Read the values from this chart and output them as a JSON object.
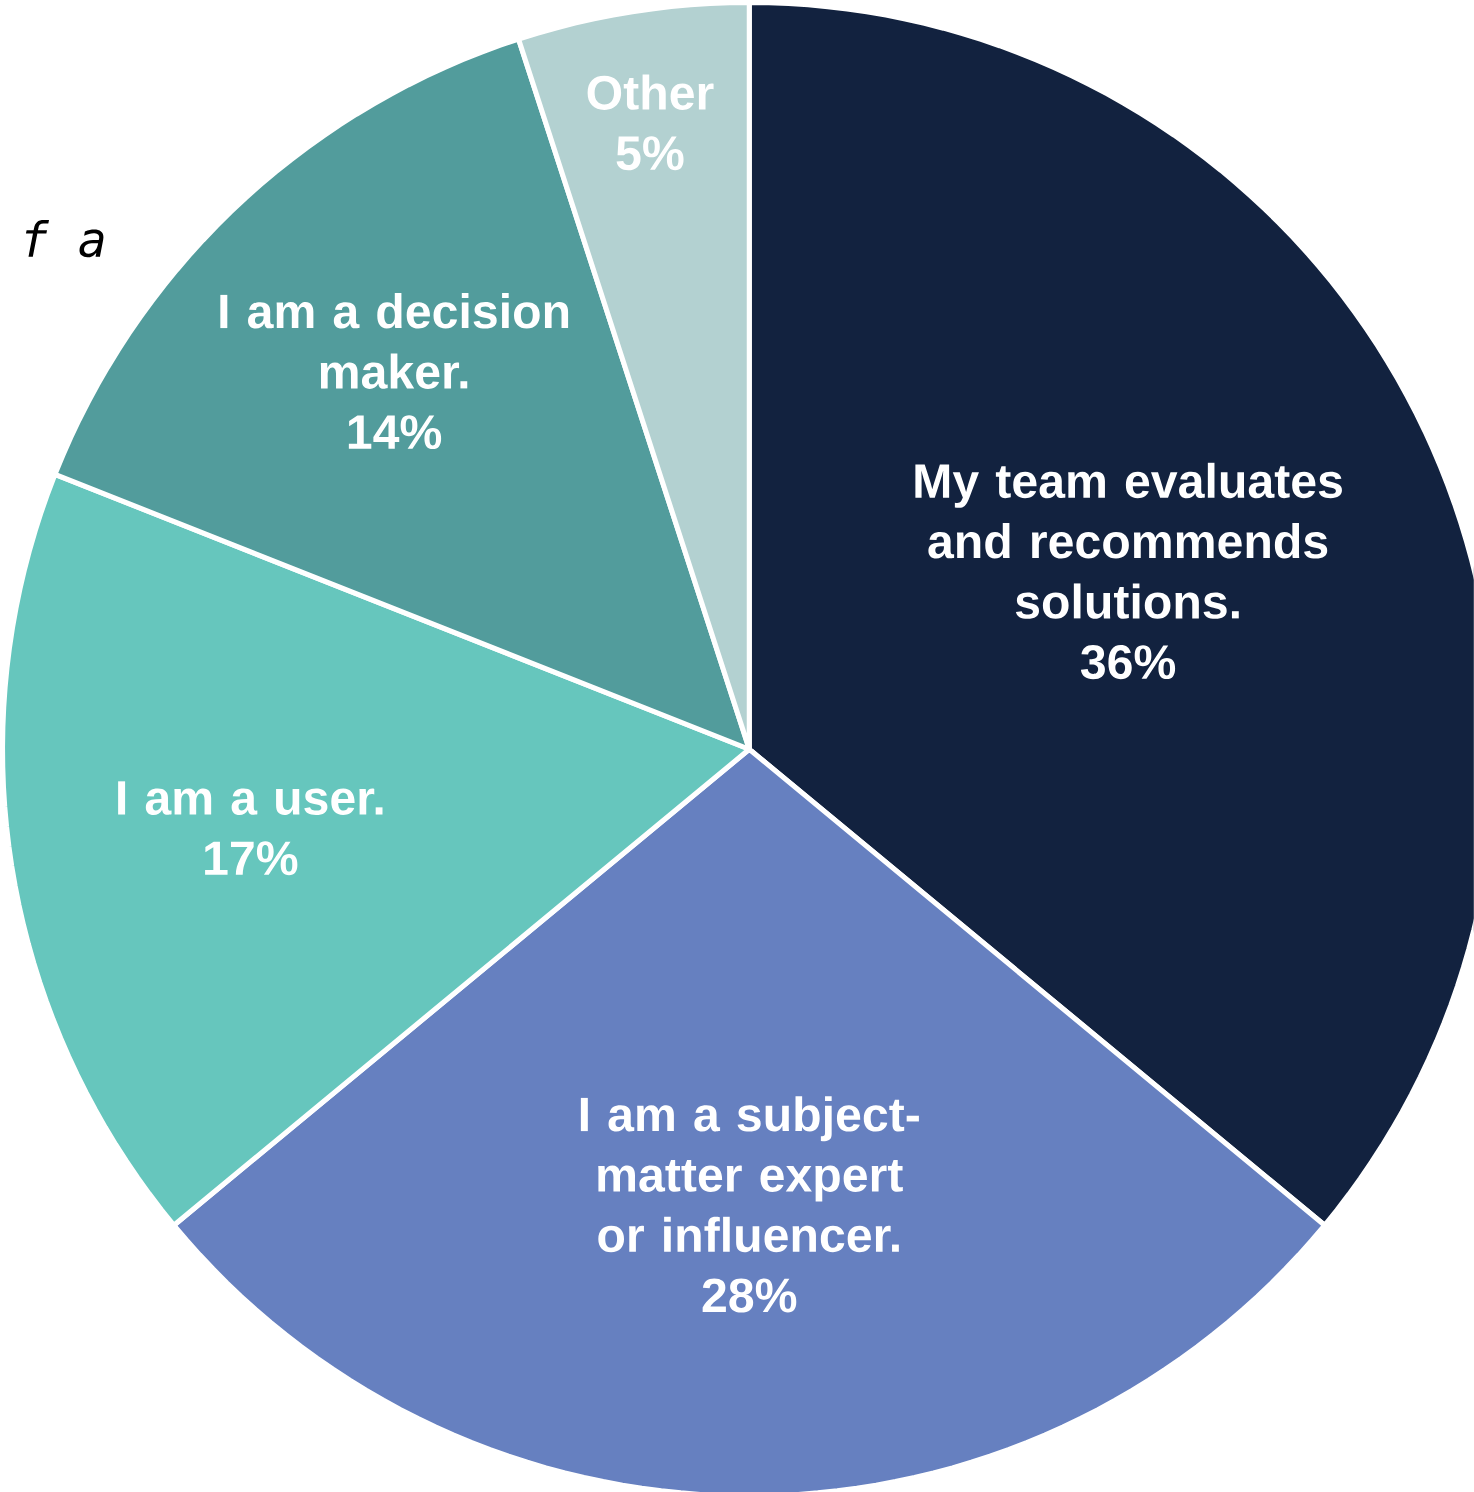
{
  "chart_data": {
    "type": "pie",
    "categories": [
      "My team evaluates and recommends solutions.",
      "I am a subject-matter expert or influencer.",
      "I am a user.",
      "I am a decision maker.",
      "Other"
    ],
    "values": [
      36,
      28,
      17,
      14,
      5
    ],
    "value_labels": [
      "36%",
      "28%",
      "17%",
      "14%",
      "5%"
    ],
    "colors": [
      "#12223f",
      "#6680c0",
      "#66c6bd",
      "#529c9c",
      "#b3d1d1"
    ],
    "annotations": [
      "f a"
    ]
  }
}
